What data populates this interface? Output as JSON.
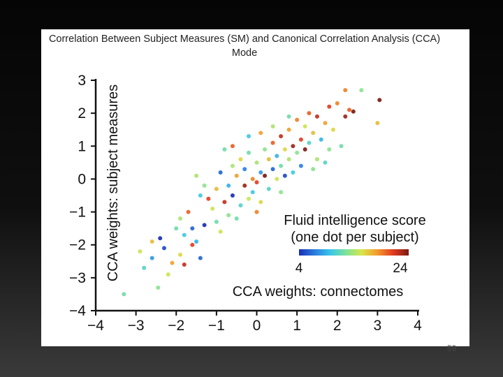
{
  "slide": {
    "title": "Correlation Between Subject Measures (SM) and  Canonical Correlation Analysis (CCA) Mode",
    "page_number": "59"
  },
  "colors": {
    "background": "#0a0a0a",
    "panel": "#ffffff",
    "axis": "#111111",
    "colormap": [
      "#1a2fb5",
      "#2a7de0",
      "#39c6e8",
      "#7ee29a",
      "#d8e64a",
      "#f39a2c",
      "#e23a22",
      "#7a1a12"
    ]
  },
  "chart_data": {
    "type": "scatter",
    "title": "",
    "xlabel": "CCA weights: connectomes",
    "ylabel": "CCA weights: subject measures",
    "xlim": [
      -4,
      4
    ],
    "ylim": [
      -4,
      3
    ],
    "xticks": [
      "−4",
      "−3",
      "−2",
      "−1",
      "0",
      "1",
      "2",
      "3",
      "4"
    ],
    "yticks": [
      "3",
      "2",
      "1",
      "0",
      "−1",
      "−2",
      "−3",
      "−4"
    ],
    "colorbar": {
      "label_line1": "Fluid intelligence score",
      "label_line2": "(one dot per subject)",
      "min_label": "4",
      "max_label": "24",
      "range": [
        4,
        24
      ]
    },
    "points": [
      {
        "x": -3.3,
        "y": -3.5,
        "score": 12
      },
      {
        "x": -2.45,
        "y": -3.3,
        "score": 13
      },
      {
        "x": -2.8,
        "y": -2.7,
        "score": 11
      },
      {
        "x": -2.9,
        "y": -2.2,
        "score": 15
      },
      {
        "x": -2.6,
        "y": -2.4,
        "score": 8
      },
      {
        "x": -2.3,
        "y": -2.1,
        "score": 5
      },
      {
        "x": -2.1,
        "y": -2.55,
        "score": 18
      },
      {
        "x": -1.9,
        "y": -2.3,
        "score": 16
      },
      {
        "x": -2.4,
        "y": -1.8,
        "score": 4
      },
      {
        "x": -1.8,
        "y": -1.7,
        "score": 10
      },
      {
        "x": -1.6,
        "y": -1.5,
        "score": 6
      },
      {
        "x": -1.9,
        "y": -1.2,
        "score": 14
      },
      {
        "x": -1.7,
        "y": -1.0,
        "score": 20
      },
      {
        "x": -1.5,
        "y": -1.9,
        "score": 9
      },
      {
        "x": -1.3,
        "y": -1.4,
        "score": 4
      },
      {
        "x": -1.4,
        "y": -0.5,
        "score": 10
      },
      {
        "x": -1.2,
        "y": -0.6,
        "score": 21
      },
      {
        "x": -1.0,
        "y": -1.3,
        "score": 12
      },
      {
        "x": -1.1,
        "y": -0.9,
        "score": 15
      },
      {
        "x": -1.0,
        "y": -0.3,
        "score": 17
      },
      {
        "x": -0.9,
        "y": 0.2,
        "score": 6
      },
      {
        "x": -0.8,
        "y": -0.7,
        "score": 22
      },
      {
        "x": -0.7,
        "y": -1.1,
        "score": 13
      },
      {
        "x": -0.7,
        "y": -0.2,
        "score": 9
      },
      {
        "x": -0.6,
        "y": 0.4,
        "score": 14
      },
      {
        "x": -0.6,
        "y": -0.5,
        "score": 4
      },
      {
        "x": -0.5,
        "y": 0.1,
        "score": 18
      },
      {
        "x": -0.4,
        "y": -0.8,
        "score": 11
      },
      {
        "x": -0.4,
        "y": 0.6,
        "score": 16
      },
      {
        "x": -0.3,
        "y": -0.2,
        "score": 23
      },
      {
        "x": -0.3,
        "y": 0.3,
        "score": 7
      },
      {
        "x": -0.2,
        "y": -0.6,
        "score": 15
      },
      {
        "x": -0.2,
        "y": 0.8,
        "score": 12
      },
      {
        "x": -0.1,
        "y": 0.0,
        "score": 19
      },
      {
        "x": -0.1,
        "y": -0.4,
        "score": 10
      },
      {
        "x": 0.0,
        "y": 0.5,
        "score": 14
      },
      {
        "x": 0.0,
        "y": -0.1,
        "score": 21
      },
      {
        "x": 0.1,
        "y": 0.2,
        "score": 8
      },
      {
        "x": 0.1,
        "y": -0.7,
        "score": 16
      },
      {
        "x": 0.2,
        "y": 0.9,
        "score": 13
      },
      {
        "x": 0.2,
        "y": 0.1,
        "score": 24
      },
      {
        "x": 0.3,
        "y": -0.3,
        "score": 11
      },
      {
        "x": 0.3,
        "y": 0.6,
        "score": 17
      },
      {
        "x": 0.4,
        "y": 0.3,
        "score": 6
      },
      {
        "x": 0.4,
        "y": 1.1,
        "score": 20
      },
      {
        "x": 0.5,
        "y": 0.0,
        "score": 15
      },
      {
        "x": 0.5,
        "y": 0.7,
        "score": 9
      },
      {
        "x": 0.6,
        "y": 1.3,
        "score": 22
      },
      {
        "x": 0.6,
        "y": 0.4,
        "score": 12
      },
      {
        "x": 0.7,
        "y": 0.9,
        "score": 16
      },
      {
        "x": 0.7,
        "y": 0.1,
        "score": 5
      },
      {
        "x": 0.8,
        "y": 1.5,
        "score": 18
      },
      {
        "x": 0.8,
        "y": 0.6,
        "score": 14
      },
      {
        "x": 0.9,
        "y": 1.0,
        "score": 23
      },
      {
        "x": 0.9,
        "y": 0.2,
        "score": 10
      },
      {
        "x": 1.0,
        "y": 1.8,
        "score": 19
      },
      {
        "x": 1.0,
        "y": 0.8,
        "score": 13
      },
      {
        "x": 1.1,
        "y": 1.2,
        "score": 21
      },
      {
        "x": 1.1,
        "y": 0.4,
        "score": 7
      },
      {
        "x": 1.2,
        "y": 1.6,
        "score": 15
      },
      {
        "x": 1.2,
        "y": 0.9,
        "score": 24
      },
      {
        "x": 1.3,
        "y": 2.0,
        "score": 20
      },
      {
        "x": 1.3,
        "y": 1.1,
        "score": 11
      },
      {
        "x": 1.4,
        "y": 1.4,
        "score": 17
      },
      {
        "x": 1.5,
        "y": 0.6,
        "score": 14
      },
      {
        "x": 1.5,
        "y": 1.9,
        "score": 22
      },
      {
        "x": 1.6,
        "y": 1.2,
        "score": 9
      },
      {
        "x": 1.7,
        "y": 1.7,
        "score": 18
      },
      {
        "x": 1.8,
        "y": 2.2,
        "score": 21
      },
      {
        "x": 1.8,
        "y": 0.9,
        "score": 13
      },
      {
        "x": 1.9,
        "y": 1.5,
        "score": 16
      },
      {
        "x": 2.0,
        "y": 2.3,
        "score": 19
      },
      {
        "x": 2.1,
        "y": 1.0,
        "score": 12
      },
      {
        "x": 2.2,
        "y": 1.9,
        "score": 23
      },
      {
        "x": 2.3,
        "y": 2.1,
        "score": 20
      },
      {
        "x": 2.2,
        "y": 2.7,
        "score": 19
      },
      {
        "x": 2.6,
        "y": 2.7,
        "score": 13
      },
      {
        "x": 2.4,
        "y": 2.05,
        "score": 24
      },
      {
        "x": 3.0,
        "y": 1.7,
        "score": 17
      },
      {
        "x": 3.05,
        "y": 2.4,
        "score": 24
      },
      {
        "x": -2.0,
        "y": -1.5,
        "score": 12
      },
      {
        "x": -1.6,
        "y": -2.0,
        "score": 21
      },
      {
        "x": -1.3,
        "y": -0.2,
        "score": 13
      },
      {
        "x": -0.9,
        "y": -1.6,
        "score": 15
      },
      {
        "x": -0.5,
        "y": -1.2,
        "score": 12
      },
      {
        "x": 0.4,
        "y": 1.6,
        "score": 14
      },
      {
        "x": 0.8,
        "y": 1.9,
        "score": 12
      },
      {
        "x": 1.4,
        "y": 0.3,
        "score": 13
      },
      {
        "x": -0.2,
        "y": 1.3,
        "score": 10
      },
      {
        "x": 0.1,
        "y": 1.4,
        "score": 18
      },
      {
        "x": -2.2,
        "y": -2.9,
        "score": 15
      },
      {
        "x": -1.8,
        "y": -2.6,
        "score": 22
      },
      {
        "x": -1.4,
        "y": -2.4,
        "score": 6
      },
      {
        "x": -0.8,
        "y": 0.9,
        "score": 12
      },
      {
        "x": -1.5,
        "y": 0.1,
        "score": 14
      },
      {
        "x": -2.6,
        "y": -1.9,
        "score": 17
      },
      {
        "x": 1.7,
        "y": 0.5,
        "score": 11
      },
      {
        "x": 0.0,
        "y": -1.0,
        "score": 19
      },
      {
        "x": 0.6,
        "y": -0.4,
        "score": 13
      },
      {
        "x": -0.6,
        "y": 1.0,
        "score": 20
      }
    ]
  }
}
